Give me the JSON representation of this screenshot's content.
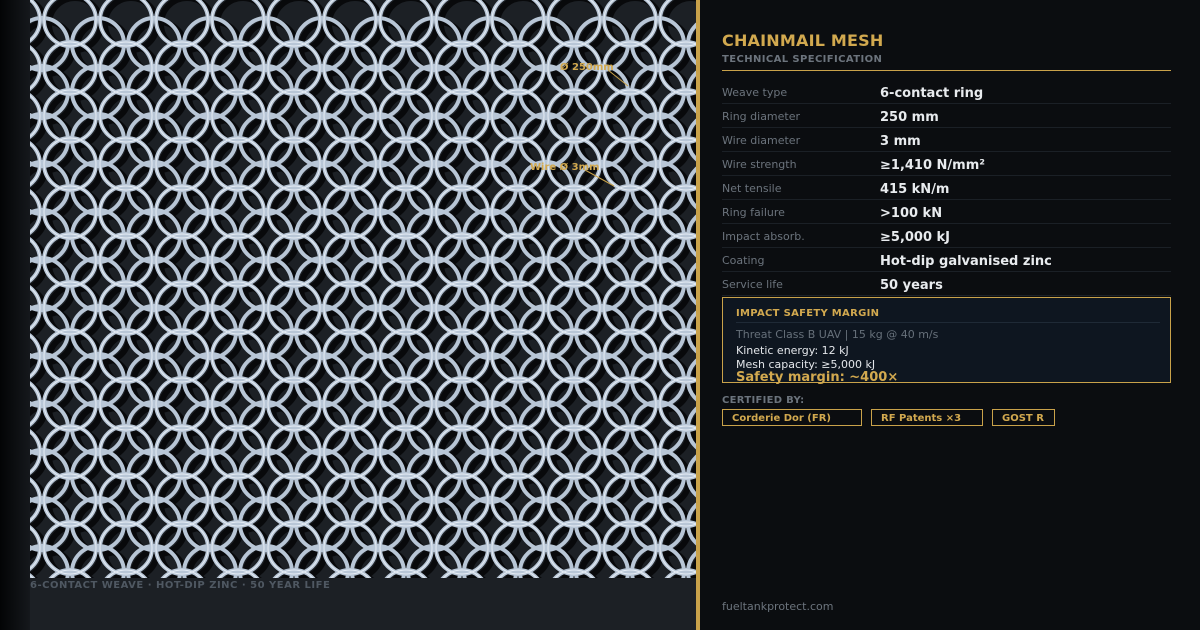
{
  "mesh": {
    "diameter_label": "Ø 250mm",
    "wire_label": "Wire Ø 3mm",
    "footer_caption": "6-CONTACT WEAVE  ·  HOT-DIP ZINC  ·  50 YEAR LIFE"
  },
  "spec": {
    "title": "CHAINMAIL MESH",
    "subtitle": "TECHNICAL SPECIFICATION",
    "rows": [
      {
        "label": "Weave type",
        "value": "6-contact ring"
      },
      {
        "label": "Ring diameter",
        "value": "250 mm"
      },
      {
        "label": "Wire diameter",
        "value": "3 mm"
      },
      {
        "label": "Wire strength",
        "value": "≥1,410 N/mm²"
      },
      {
        "label": "Net tensile",
        "value": "415 kN/m"
      },
      {
        "label": "Ring failure",
        "value": ">100 kN"
      },
      {
        "label": "Impact absorb.",
        "value": "≥5,000 kJ"
      },
      {
        "label": "Coating",
        "value": "Hot-dip galvanised zinc"
      },
      {
        "label": "Service life",
        "value": "50 years"
      }
    ]
  },
  "impact_margin": {
    "title": "IMPACT SAFETY MARGIN",
    "threat": "Threat Class B UAV  |  15 kg @ 40 m/s",
    "kinetic_energy": "Kinetic energy:  12 kJ",
    "mesh_capacity": "Mesh capacity:  ≥5,000 kJ",
    "safety_margin": "Safety margin:  ~400×"
  },
  "certified": {
    "label": "CERTIFIED BY:",
    "badges": [
      "Corderie Dor (FR)",
      "RF Patents ×3",
      "GOST R"
    ]
  },
  "site_url": "fueltankprotect.com",
  "colors": {
    "accent_gold": "#c9a24a",
    "ring_steel": "#b8c6d6",
    "panel_dark": "#1c2025",
    "background": "#0b0d10"
  }
}
